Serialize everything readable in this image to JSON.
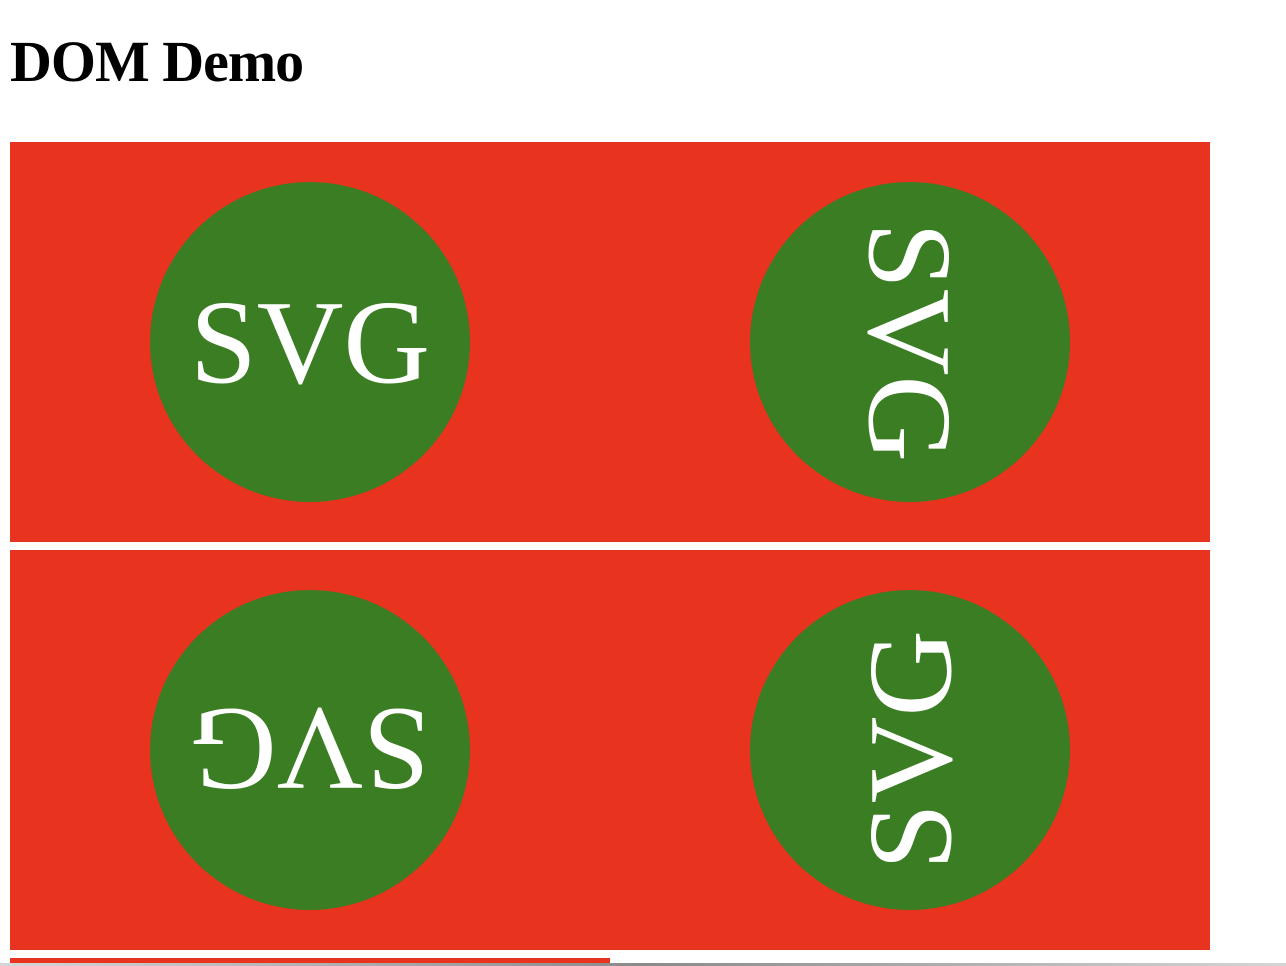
{
  "page": {
    "title": "DOM Demo"
  },
  "colors": {
    "panel_background": "#e8331f",
    "circle_fill": "#3a7d22",
    "label_text": "#ffffff"
  },
  "panels": [
    {
      "items": [
        {
          "label": "SVG",
          "rotation_deg": 0
        },
        {
          "label": "SVG",
          "rotation_deg": 90
        }
      ]
    },
    {
      "items": [
        {
          "label": "SVG",
          "rotation_deg": 180
        },
        {
          "label": "SVG",
          "rotation_deg": 270
        }
      ]
    },
    {
      "items": []
    }
  ]
}
